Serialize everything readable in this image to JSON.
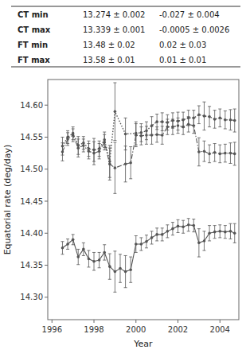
{
  "chart_data": {
    "type": "line",
    "xlabel": "Year",
    "ylabel": "Equatorial rate (deg/day)",
    "xlim": [
      1995.8,
      2004.9
    ],
    "ylim": [
      14.265,
      14.64
    ],
    "xticks": [
      1996,
      1998,
      2000,
      2002,
      2004
    ],
    "yticks": [
      {
        "value": 14.3,
        "label": "14.30"
      },
      14.35,
      {
        "value": 14.4,
        "label": "14.40"
      },
      14.45,
      {
        "value": 14.5,
        "label": "14.50"
      },
      14.55,
      {
        "value": 14.6,
        "label": "14.60"
      }
    ],
    "grid": false,
    "table": {
      "rows": [
        [
          "CT min",
          "13.274 ± 0.002",
          "-0.027 ± 0.004"
        ],
        [
          "CT max",
          "13.339 ± 0.001",
          "-0.0005 ± 0.0026"
        ],
        [
          "FT min",
          "13.48 ± 0.02",
          "0.02 ± 0.03"
        ],
        [
          "FT max",
          "13.58 ± 0.01",
          "0.01 ± 0.01"
        ]
      ]
    },
    "series": [
      {
        "color": "#555555",
        "line_style": "solid",
        "marker": "circle",
        "x": [
          1996.5,
          1996.75,
          1997.0,
          1997.25,
          1997.5,
          1997.75,
          1998.0,
          1998.25,
          1998.5,
          1998.75,
          1999.0,
          1999.25,
          1999.5,
          1999.75,
          2000.0,
          2000.25,
          2000.5,
          2000.75,
          2001.0,
          2001.25,
          2001.5,
          2001.75,
          2002.0,
          2002.25,
          2002.5,
          2002.75,
          2003.0,
          2003.25,
          2003.5,
          2003.75,
          2004.0,
          2004.25,
          2004.5,
          2004.7
        ],
        "values": [
          14.377,
          14.383,
          14.39,
          14.363,
          14.375,
          14.36,
          14.356,
          14.358,
          14.37,
          14.348,
          14.34,
          14.345,
          14.34,
          14.343,
          14.383,
          14.383,
          14.387,
          14.393,
          14.398,
          14.398,
          14.403,
          14.407,
          14.411,
          14.41,
          14.413,
          14.412,
          14.385,
          14.388,
          14.4,
          14.402,
          14.403,
          14.402,
          14.403,
          14.4
        ],
        "errors": [
          0.01,
          0.008,
          0.008,
          0.012,
          0.01,
          0.013,
          0.014,
          0.012,
          0.012,
          0.02,
          0.032,
          0.022,
          0.025,
          0.02,
          0.013,
          0.01,
          0.01,
          0.01,
          0.01,
          0.01,
          0.01,
          0.01,
          0.01,
          0.01,
          0.01,
          0.01,
          0.022,
          0.015,
          0.012,
          0.01,
          0.01,
          0.01,
          0.012,
          0.015
        ]
      },
      {
        "color": "#555555",
        "line_style": "dashdot",
        "marker": "circle",
        "x": [
          1996.5,
          1996.75,
          1997.0,
          1997.25,
          1997.5,
          1997.75,
          1998.0,
          1998.25,
          1998.5,
          1998.75,
          1999.0,
          1999.5,
          1999.75,
          2000.0,
          2000.25,
          2000.5,
          2000.75,
          2001.0,
          2001.25,
          2001.5,
          2001.75,
          2002.0,
          2002.25,
          2002.5,
          2002.75,
          2003.0,
          2003.25,
          2003.5,
          2003.75,
          2004.0,
          2004.25,
          2004.5,
          2004.7
        ],
        "values": [
          14.527,
          14.547,
          14.553,
          14.533,
          14.537,
          14.528,
          14.525,
          14.528,
          14.542,
          14.508,
          14.502,
          14.508,
          14.51,
          14.553,
          14.552,
          14.553,
          14.553,
          14.554,
          14.553,
          14.566,
          14.566,
          14.568,
          14.566,
          14.57,
          14.568,
          14.527,
          14.528,
          14.524,
          14.526,
          14.524,
          14.525,
          14.525,
          14.524
        ],
        "errors": [
          0.014,
          0.01,
          0.01,
          0.014,
          0.01,
          0.012,
          0.018,
          0.012,
          0.012,
          0.025,
          0.04,
          0.028,
          0.025,
          0.018,
          0.014,
          0.014,
          0.014,
          0.012,
          0.014,
          0.012,
          0.012,
          0.012,
          0.012,
          0.012,
          0.012,
          0.022,
          0.016,
          0.014,
          0.014,
          0.014,
          0.014,
          0.016,
          0.018
        ]
      },
      {
        "color": "#555555",
        "line_style": "dotted",
        "marker": "circle",
        "x": [
          1996.5,
          1996.75,
          1997.0,
          1997.25,
          1997.5,
          1997.75,
          1998.0,
          1998.25,
          1998.5,
          1998.75,
          1999.0,
          1999.5,
          2000.0,
          2000.25,
          2000.5,
          2000.75,
          2001.0,
          2001.25,
          2001.5,
          2001.75,
          2002.0,
          2002.25,
          2002.5,
          2002.75,
          2003.0,
          2003.25,
          2003.5,
          2003.75,
          2004.0,
          2004.25,
          2004.5,
          2004.7
        ],
        "values": [
          14.536,
          14.55,
          14.556,
          14.537,
          14.541,
          14.532,
          14.53,
          14.532,
          14.546,
          14.512,
          14.59,
          14.555,
          14.556,
          14.557,
          14.56,
          14.568,
          14.574,
          14.574,
          14.573,
          14.576,
          14.575,
          14.577,
          14.58,
          14.58,
          14.585,
          14.583,
          14.582,
          14.578,
          14.58,
          14.577,
          14.577,
          14.576
        ],
        "errors": [
          0.014,
          0.01,
          0.01,
          0.014,
          0.01,
          0.012,
          0.018,
          0.012,
          0.012,
          0.025,
          0.045,
          0.025,
          0.018,
          0.014,
          0.014,
          0.014,
          0.012,
          0.014,
          0.012,
          0.012,
          0.014,
          0.012,
          0.012,
          0.012,
          0.014,
          0.022,
          0.016,
          0.014,
          0.014,
          0.014,
          0.016,
          0.018
        ]
      }
    ]
  }
}
